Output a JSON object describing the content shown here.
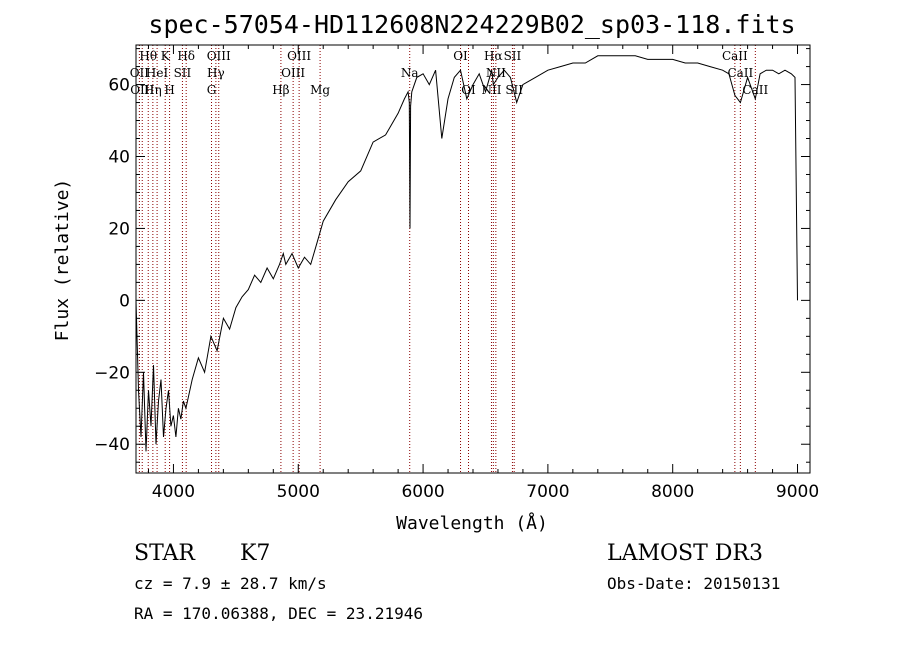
{
  "chart_data": {
    "type": "line",
    "title": "spec-57054-HD112608N224229B02_sp03-118.fits",
    "xlabel": "Wavelength (Å)",
    "ylabel": "Flux (relative)",
    "xlim": [
      3700,
      9100
    ],
    "ylim": [
      -48,
      71
    ],
    "x_ticks": [
      4000,
      5000,
      6000,
      7000,
      8000,
      9000
    ],
    "y_ticks": [
      -40,
      -20,
      0,
      20,
      40,
      60
    ],
    "x_tick_labels": [
      "4000",
      "5000",
      "6000",
      "7000",
      "8000",
      "9000"
    ],
    "y_tick_labels": [
      "−40",
      "−20",
      "0",
      "20",
      "40",
      "60"
    ],
    "grid": false,
    "line_color": "#000000",
    "marker_color": "#8b0000",
    "series": [
      {
        "x": [
          3700,
          3720,
          3740,
          3760,
          3780,
          3800,
          3820,
          3840,
          3860,
          3880,
          3900,
          3920,
          3940,
          3960,
          3980,
          4000,
          4020,
          4040,
          4060,
          4080,
          4100,
          4150,
          4200,
          4250,
          4300,
          4350,
          4400,
          4450,
          4500,
          4550,
          4600,
          4650,
          4700,
          4750,
          4800,
          4850,
          4880,
          4900,
          4950,
          5000,
          5050,
          5100,
          5150,
          5200,
          5300,
          5400,
          5500,
          5600,
          5700,
          5800,
          5850,
          5880,
          5890,
          5895,
          5900,
          5910,
          5950,
          6000,
          6050,
          6100,
          6150,
          6200,
          6250,
          6300,
          6350,
          6400,
          6450,
          6500,
          6550,
          6563,
          6600,
          6650,
          6700,
          6750,
          6800,
          6900,
          7000,
          7100,
          7200,
          7300,
          7400,
          7500,
          7600,
          7700,
          7800,
          7900,
          8000,
          8100,
          8200,
          8300,
          8400,
          8450,
          8498,
          8542,
          8600,
          8662,
          8700,
          8750,
          8800,
          8850,
          8900,
          8950,
          8980,
          9000
        ],
        "y": [
          0,
          -25,
          -38,
          -20,
          -42,
          -25,
          -35,
          -18,
          -40,
          -28,
          -22,
          -38,
          -30,
          -25,
          -35,
          -32,
          -38,
          -30,
          -33,
          -28,
          -30,
          -22,
          -16,
          -20,
          -10,
          -14,
          -5,
          -8,
          -2,
          1,
          3,
          7,
          5,
          9,
          6,
          10,
          13,
          10,
          13,
          9,
          12,
          10,
          16,
          22,
          28,
          33,
          36,
          44,
          46,
          52,
          56,
          58,
          55,
          20,
          54,
          58,
          62,
          63,
          60,
          64,
          45,
          56,
          62,
          64,
          56,
          60,
          63,
          58,
          64,
          60,
          62,
          64,
          62,
          55,
          60,
          62,
          64,
          65,
          66,
          66,
          68,
          68,
          68,
          68,
          67,
          67,
          67,
          66,
          66,
          65,
          64,
          63,
          57,
          55,
          62,
          56,
          63,
          64,
          64,
          63,
          64,
          63,
          62,
          0
        ]
      }
    ],
    "lines": [
      {
        "x": 3727,
        "label": "OII",
        "row": 1
      },
      {
        "x": 3750,
        "label": "OIII",
        "row": 2
      },
      {
        "x": 3798,
        "label": "Hθ",
        "row": 0
      },
      {
        "x": 3835,
        "label": "Hη",
        "row": 2
      },
      {
        "x": 3869,
        "label": "HeI",
        "row": 1
      },
      {
        "x": 3934,
        "label": "K",
        "row": 0
      },
      {
        "x": 3969,
        "label": "H",
        "row": 2
      },
      {
        "x": 4072,
        "label": "SII",
        "row": 1
      },
      {
        "x": 4102,
        "label": "Hδ",
        "row": 0
      },
      {
        "x": 4305,
        "label": "G",
        "row": 2
      },
      {
        "x": 4340,
        "label": "Hγ",
        "row": 1
      },
      {
        "x": 4363,
        "label": "OIII",
        "row": 0
      },
      {
        "x": 4861,
        "label": "Hβ",
        "row": 2
      },
      {
        "x": 4959,
        "label": "OIII",
        "row": 1
      },
      {
        "x": 5007,
        "label": "OIII",
        "row": 0
      },
      {
        "x": 5175,
        "label": "Mg",
        "row": 2
      },
      {
        "x": 5893,
        "label": "Na",
        "row": 1
      },
      {
        "x": 6300,
        "label": "OI",
        "row": 0
      },
      {
        "x": 6364,
        "label": "OI",
        "row": 2
      },
      {
        "x": 6548,
        "label": "NII",
        "row": 2
      },
      {
        "x": 6563,
        "label": "Hα",
        "row": 0
      },
      {
        "x": 6583,
        "label": "NII",
        "row": 1
      },
      {
        "x": 6716,
        "label": "SII",
        "row": 0
      },
      {
        "x": 6730,
        "label": "SII",
        "row": 2
      },
      {
        "x": 8498,
        "label": "CaII",
        "row": 0
      },
      {
        "x": 8542,
        "label": "CaII",
        "row": 1
      },
      {
        "x": 8662,
        "label": "CaII",
        "row": 2
      }
    ]
  },
  "info": {
    "class": "STAR",
    "subclass": "K7",
    "survey": "LAMOST DR3",
    "cz": "cz = 7.9 ± 28.7 km/s",
    "obs_date": "Obs-Date: 20150131",
    "coords": "RA = 170.06388, DEC =  23.21946"
  }
}
